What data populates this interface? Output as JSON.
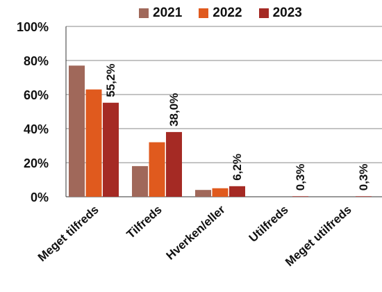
{
  "chart_data": {
    "type": "bar",
    "title": "",
    "xlabel": "",
    "ylabel": "",
    "ylim": [
      0,
      100
    ],
    "y_ticks": [
      "0%",
      "20%",
      "40%",
      "60%",
      "80%",
      "100%"
    ],
    "grid": true,
    "legend_placement": "top",
    "categories": [
      "Meget tilfreds",
      "Tilfreds",
      "Hverken/eller",
      "Utilfreds",
      "Meget utilfreds"
    ],
    "series": [
      {
        "name": "2021",
        "color": "#a0685a",
        "values": [
          77,
          18,
          4,
          0,
          0
        ]
      },
      {
        "name": "2022",
        "color": "#e05a1e",
        "values": [
          63,
          32,
          5,
          0,
          0
        ]
      },
      {
        "name": "2023",
        "color": "#a52a24",
        "values": [
          55.2,
          38.0,
          6.2,
          0.3,
          0.3
        ]
      }
    ],
    "data_labels": {
      "series": "2023",
      "labels": [
        "55,2%",
        "38,0%",
        "6,2%",
        "0,3%",
        "0,3%"
      ]
    }
  }
}
